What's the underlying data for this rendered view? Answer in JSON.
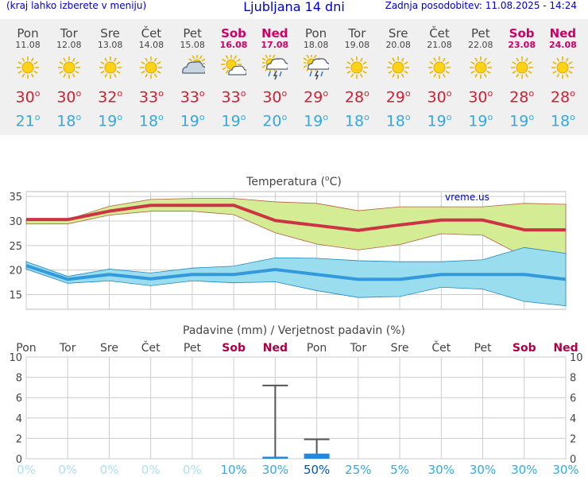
{
  "header": {
    "left": "(kraj lahko izberete v meniju)",
    "title": "Ljubljana 14 dni",
    "right": "Zadnja posodobitev: 11.08.2025 - 14:24"
  },
  "forecast": {
    "days": [
      {
        "name": "Pon",
        "date": "11.08",
        "icon": "sun-icon",
        "max": "30",
        "min": "21",
        "weekend": false
      },
      {
        "name": "Tor",
        "date": "12.08",
        "icon": "sun-icon",
        "max": "30",
        "min": "18",
        "weekend": false
      },
      {
        "name": "Sre",
        "date": "13.08",
        "icon": "sun-icon",
        "max": "32",
        "min": "19",
        "weekend": false
      },
      {
        "name": "Čet",
        "date": "14.08",
        "icon": "sun-icon",
        "max": "33",
        "min": "18",
        "weekend": false
      },
      {
        "name": "Pet",
        "date": "15.08",
        "icon": "cloudy-icon",
        "max": "33",
        "min": "19",
        "weekend": false
      },
      {
        "name": "Sob",
        "date": "16.08",
        "icon": "sun-cloud-icon",
        "max": "33",
        "min": "19",
        "weekend": true
      },
      {
        "name": "Ned",
        "date": "17.08",
        "icon": "storm-icon",
        "max": "30",
        "min": "20",
        "weekend": true
      },
      {
        "name": "Pon",
        "date": "18.08",
        "icon": "storm-icon",
        "max": "29",
        "min": "19",
        "weekend": false
      },
      {
        "name": "Tor",
        "date": "19.08",
        "icon": "sun-icon",
        "max": "28",
        "min": "18",
        "weekend": false
      },
      {
        "name": "Sre",
        "date": "20.08",
        "icon": "sun-icon",
        "max": "29",
        "min": "18",
        "weekend": false
      },
      {
        "name": "Čet",
        "date": "21.08",
        "icon": "sun-icon",
        "max": "30",
        "min": "19",
        "weekend": false
      },
      {
        "name": "Pet",
        "date": "22.08",
        "icon": "sun-icon",
        "max": "30",
        "min": "19",
        "weekend": false
      },
      {
        "name": "Sob",
        "date": "23.08",
        "icon": "sun-icon",
        "max": "28",
        "min": "19",
        "weekend": true
      },
      {
        "name": "Ned",
        "date": "24.08",
        "icon": "sun-icon",
        "max": "28",
        "min": "18",
        "weekend": true
      }
    ]
  },
  "chart_data": [
    {
      "type": "line",
      "title": "Temperatura (°C)",
      "title_main": "Temperatura (",
      "title_unit_sup": "o",
      "title_unit": "C)",
      "watermark": "vreme.us",
      "x": [
        "11.08",
        "12.08",
        "13.08",
        "14.08",
        "15.08",
        "16.08",
        "17.08",
        "18.08",
        "19.08",
        "20.08",
        "21.08",
        "22.08",
        "23.08",
        "24.08"
      ],
      "ylim": [
        12,
        36
      ],
      "yticks": [
        15,
        20,
        25,
        30,
        35
      ],
      "grid": true,
      "series": [
        {
          "values": [
            30.3,
            30.3,
            32.0,
            33.2,
            33.2,
            33.2,
            30.1,
            29.1,
            28.1,
            29.2,
            30.2,
            30.2,
            28.2,
            28.2
          ],
          "color": "#cc3344"
        },
        {
          "values": [
            20.9,
            18.1,
            19.1,
            18.2,
            19.1,
            19.1,
            20.1,
            19.1,
            18.1,
            18.1,
            19.1,
            19.1,
            19.1,
            18.1
          ],
          "color": "#3399dd"
        }
      ],
      "max_range": {
        "upper": [
          30.3,
          30.3,
          33.0,
          34.4,
          34.6,
          34.6,
          33.9,
          33.6,
          32.1,
          32.9,
          32.9,
          32.9,
          33.6,
          33.4
        ],
        "lower": [
          29.4,
          29.4,
          31.2,
          32.0,
          32.0,
          31.3,
          27.6,
          25.3,
          24.1,
          25.2,
          27.4,
          27.1,
          22.7,
          22.8
        ],
        "color": "#d4ec94"
      },
      "min_range": {
        "upper": [
          21.7,
          18.7,
          20.2,
          19.4,
          20.4,
          20.8,
          22.5,
          22.4,
          21.9,
          21.7,
          21.7,
          22.1,
          24.6,
          23.4
        ],
        "lower": [
          20.2,
          17.3,
          17.8,
          16.8,
          17.8,
          17.4,
          17.6,
          15.8,
          14.4,
          14.6,
          16.5,
          16.1,
          13.6,
          12.7
        ],
        "color": "#99ddee"
      }
    },
    {
      "type": "bar",
      "title": "Padavine (mm) / Verjetnost padavin (%)",
      "categories": [
        "Pon",
        "Tor",
        "Sre",
        "Čet",
        "Pet",
        "Sob",
        "Ned",
        "Pon",
        "Tor",
        "Sre",
        "Čet",
        "Pet",
        "Sob",
        "Ned"
      ],
      "weekend": [
        false,
        false,
        false,
        false,
        false,
        true,
        true,
        false,
        false,
        false,
        false,
        false,
        true,
        true
      ],
      "values": [
        0,
        0,
        0,
        0,
        0,
        0,
        0.1,
        0.5,
        0,
        0,
        0,
        0,
        0,
        0
      ],
      "error_high": [
        0,
        0,
        0,
        0,
        0,
        0,
        7.2,
        1.9,
        0,
        0,
        0,
        0,
        0,
        0
      ],
      "probability": [
        "0%",
        "0%",
        "0%",
        "0%",
        "0%",
        "10%",
        "30%",
        "50%",
        "25%",
        "5%",
        "30%",
        "30%",
        "30%",
        "30%"
      ],
      "ylim": [
        0,
        10
      ],
      "yticks": [
        0,
        2,
        4,
        6,
        8,
        10
      ]
    }
  ],
  "colors": {
    "max_line": "#cc3344",
    "min_line": "#3399dd",
    "header": "#0000cc",
    "weekend": "#cc0066",
    "prob": "#33aadd"
  }
}
